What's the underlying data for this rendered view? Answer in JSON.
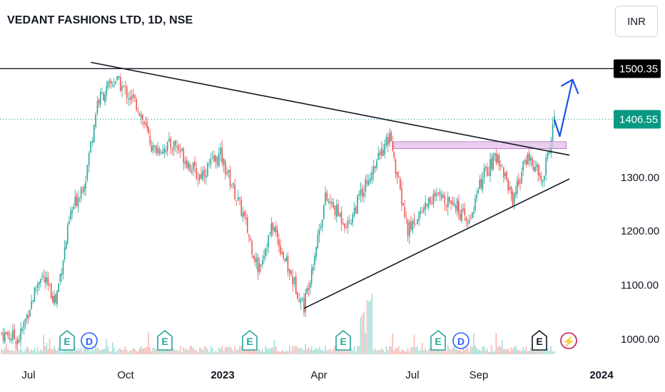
{
  "header": {
    "title": "VEDANT FASHIONS LTD, 1D, NSE",
    "currency": "INR"
  },
  "price_labels": {
    "resistance": "1500.35",
    "last": "1406.55"
  },
  "colors": {
    "up": "#26a69a",
    "down": "#ef5350",
    "volume_up": "#a5dcd5",
    "volume_down": "#f7b7b5",
    "last_price": "#089981",
    "zone_fill": "#e1bee7",
    "forecast_arrow": "#1e53e5",
    "trendline": "#131722"
  },
  "event_badges": [
    {
      "letter": "E",
      "icon": "earnings-icon"
    },
    {
      "letter": "D",
      "icon": "dividend-icon"
    },
    {
      "letter": "E",
      "icon": "earnings-icon"
    },
    {
      "letter": "E",
      "icon": "earnings-icon"
    },
    {
      "letter": "E",
      "icon": "earnings-icon"
    },
    {
      "letter": "E",
      "icon": "earnings-icon"
    },
    {
      "letter": "D",
      "icon": "dividend-icon"
    },
    {
      "letter": "E",
      "icon": "earnings-icon"
    },
    {
      "letter": "⚡",
      "icon": "lightning-icon"
    }
  ],
  "chart_data": {
    "type": "candlestick",
    "title": "VEDANT FASHIONS LTD, 1D, NSE",
    "currency": "INR",
    "x_ticks": [
      "Jul",
      "Oct",
      "2023",
      "Apr",
      "Jul",
      "Sep",
      "2024"
    ],
    "y_ticks": [
      "1000.00",
      "1100.00",
      "1200.00",
      "1300.00"
    ],
    "ylim": [
      970,
      1540
    ],
    "grid": false,
    "price_path": [
      {
        "date": "2022-06-17",
        "close": 1010
      },
      {
        "date": "2022-07-05",
        "close": 1000
      },
      {
        "date": "2022-07-25",
        "close": 1120
      },
      {
        "date": "2022-08-08",
        "close": 1070
      },
      {
        "date": "2022-08-22",
        "close": 1230
      },
      {
        "date": "2022-09-05",
        "close": 1300
      },
      {
        "date": "2022-09-16",
        "close": 1440
      },
      {
        "date": "2022-10-03",
        "close": 1480
      },
      {
        "date": "2022-10-24",
        "close": 1430
      },
      {
        "date": "2022-11-07",
        "close": 1350
      },
      {
        "date": "2022-11-28",
        "close": 1360
      },
      {
        "date": "2022-12-19",
        "close": 1300
      },
      {
        "date": "2023-01-09",
        "close": 1340
      },
      {
        "date": "2023-01-30",
        "close": 1230
      },
      {
        "date": "2023-02-13",
        "close": 1130
      },
      {
        "date": "2023-02-27",
        "close": 1210
      },
      {
        "date": "2023-03-13",
        "close": 1130
      },
      {
        "date": "2023-03-28",
        "close": 1060
      },
      {
        "date": "2023-04-17",
        "close": 1260
      },
      {
        "date": "2023-05-08",
        "close": 1210
      },
      {
        "date": "2023-05-29",
        "close": 1310
      },
      {
        "date": "2023-06-16",
        "close": 1370
      },
      {
        "date": "2023-07-03",
        "close": 1200
      },
      {
        "date": "2023-07-24",
        "close": 1260
      },
      {
        "date": "2023-08-14",
        "close": 1260
      },
      {
        "date": "2023-08-28",
        "close": 1210
      },
      {
        "date": "2023-09-11",
        "close": 1300
      },
      {
        "date": "2023-09-25",
        "close": 1340
      },
      {
        "date": "2023-10-09",
        "close": 1260
      },
      {
        "date": "2023-10-23",
        "close": 1340
      },
      {
        "date": "2023-11-06",
        "close": 1290
      },
      {
        "date": "2023-11-17",
        "close": 1406.55
      }
    ],
    "last_close": 1406.55,
    "lines": [
      {
        "name": "resistance",
        "kind": "horizontal",
        "value": 1500.35
      },
      {
        "name": "descending-trendline",
        "from": {
          "date": "2022-09-10",
          "price": 1512
        },
        "to": {
          "date": "2023-12-01",
          "price": 1340
        }
      },
      {
        "name": "ascending-trendline",
        "from": {
          "date": "2023-03-28",
          "price": 1056
        },
        "to": {
          "date": "2023-12-01",
          "price": 1296
        }
      }
    ],
    "zone": {
      "date_from": "2023-06-20",
      "date_to": "2023-11-28",
      "price_low": 1352,
      "price_high": 1365
    },
    "forecast": [
      {
        "date": "2023-11-17",
        "price": 1406
      },
      {
        "date": "2023-11-22",
        "price": 1375
      },
      {
        "date": "2023-12-04",
        "price": 1480
      }
    ]
  }
}
